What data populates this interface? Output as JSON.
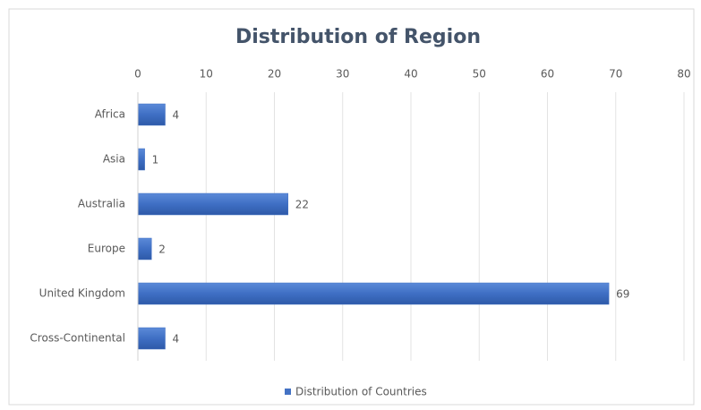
{
  "chart_data": {
    "type": "hbar",
    "title": "Distribution  of Region",
    "categories": [
      "Africa",
      "Asia",
      "Australia",
      "Europe",
      "United Kingdom",
      "Cross-Continental"
    ],
    "series": [
      {
        "name": "Distribution of Countries",
        "color": "#4472c4",
        "values": [
          4,
          1,
          22,
          2,
          69,
          4
        ]
      }
    ],
    "xlim": [
      0,
      80
    ],
    "xticks": [
      0,
      10,
      20,
      30,
      40,
      50,
      60,
      70,
      80
    ],
    "grid": true,
    "legend": "bottom"
  }
}
